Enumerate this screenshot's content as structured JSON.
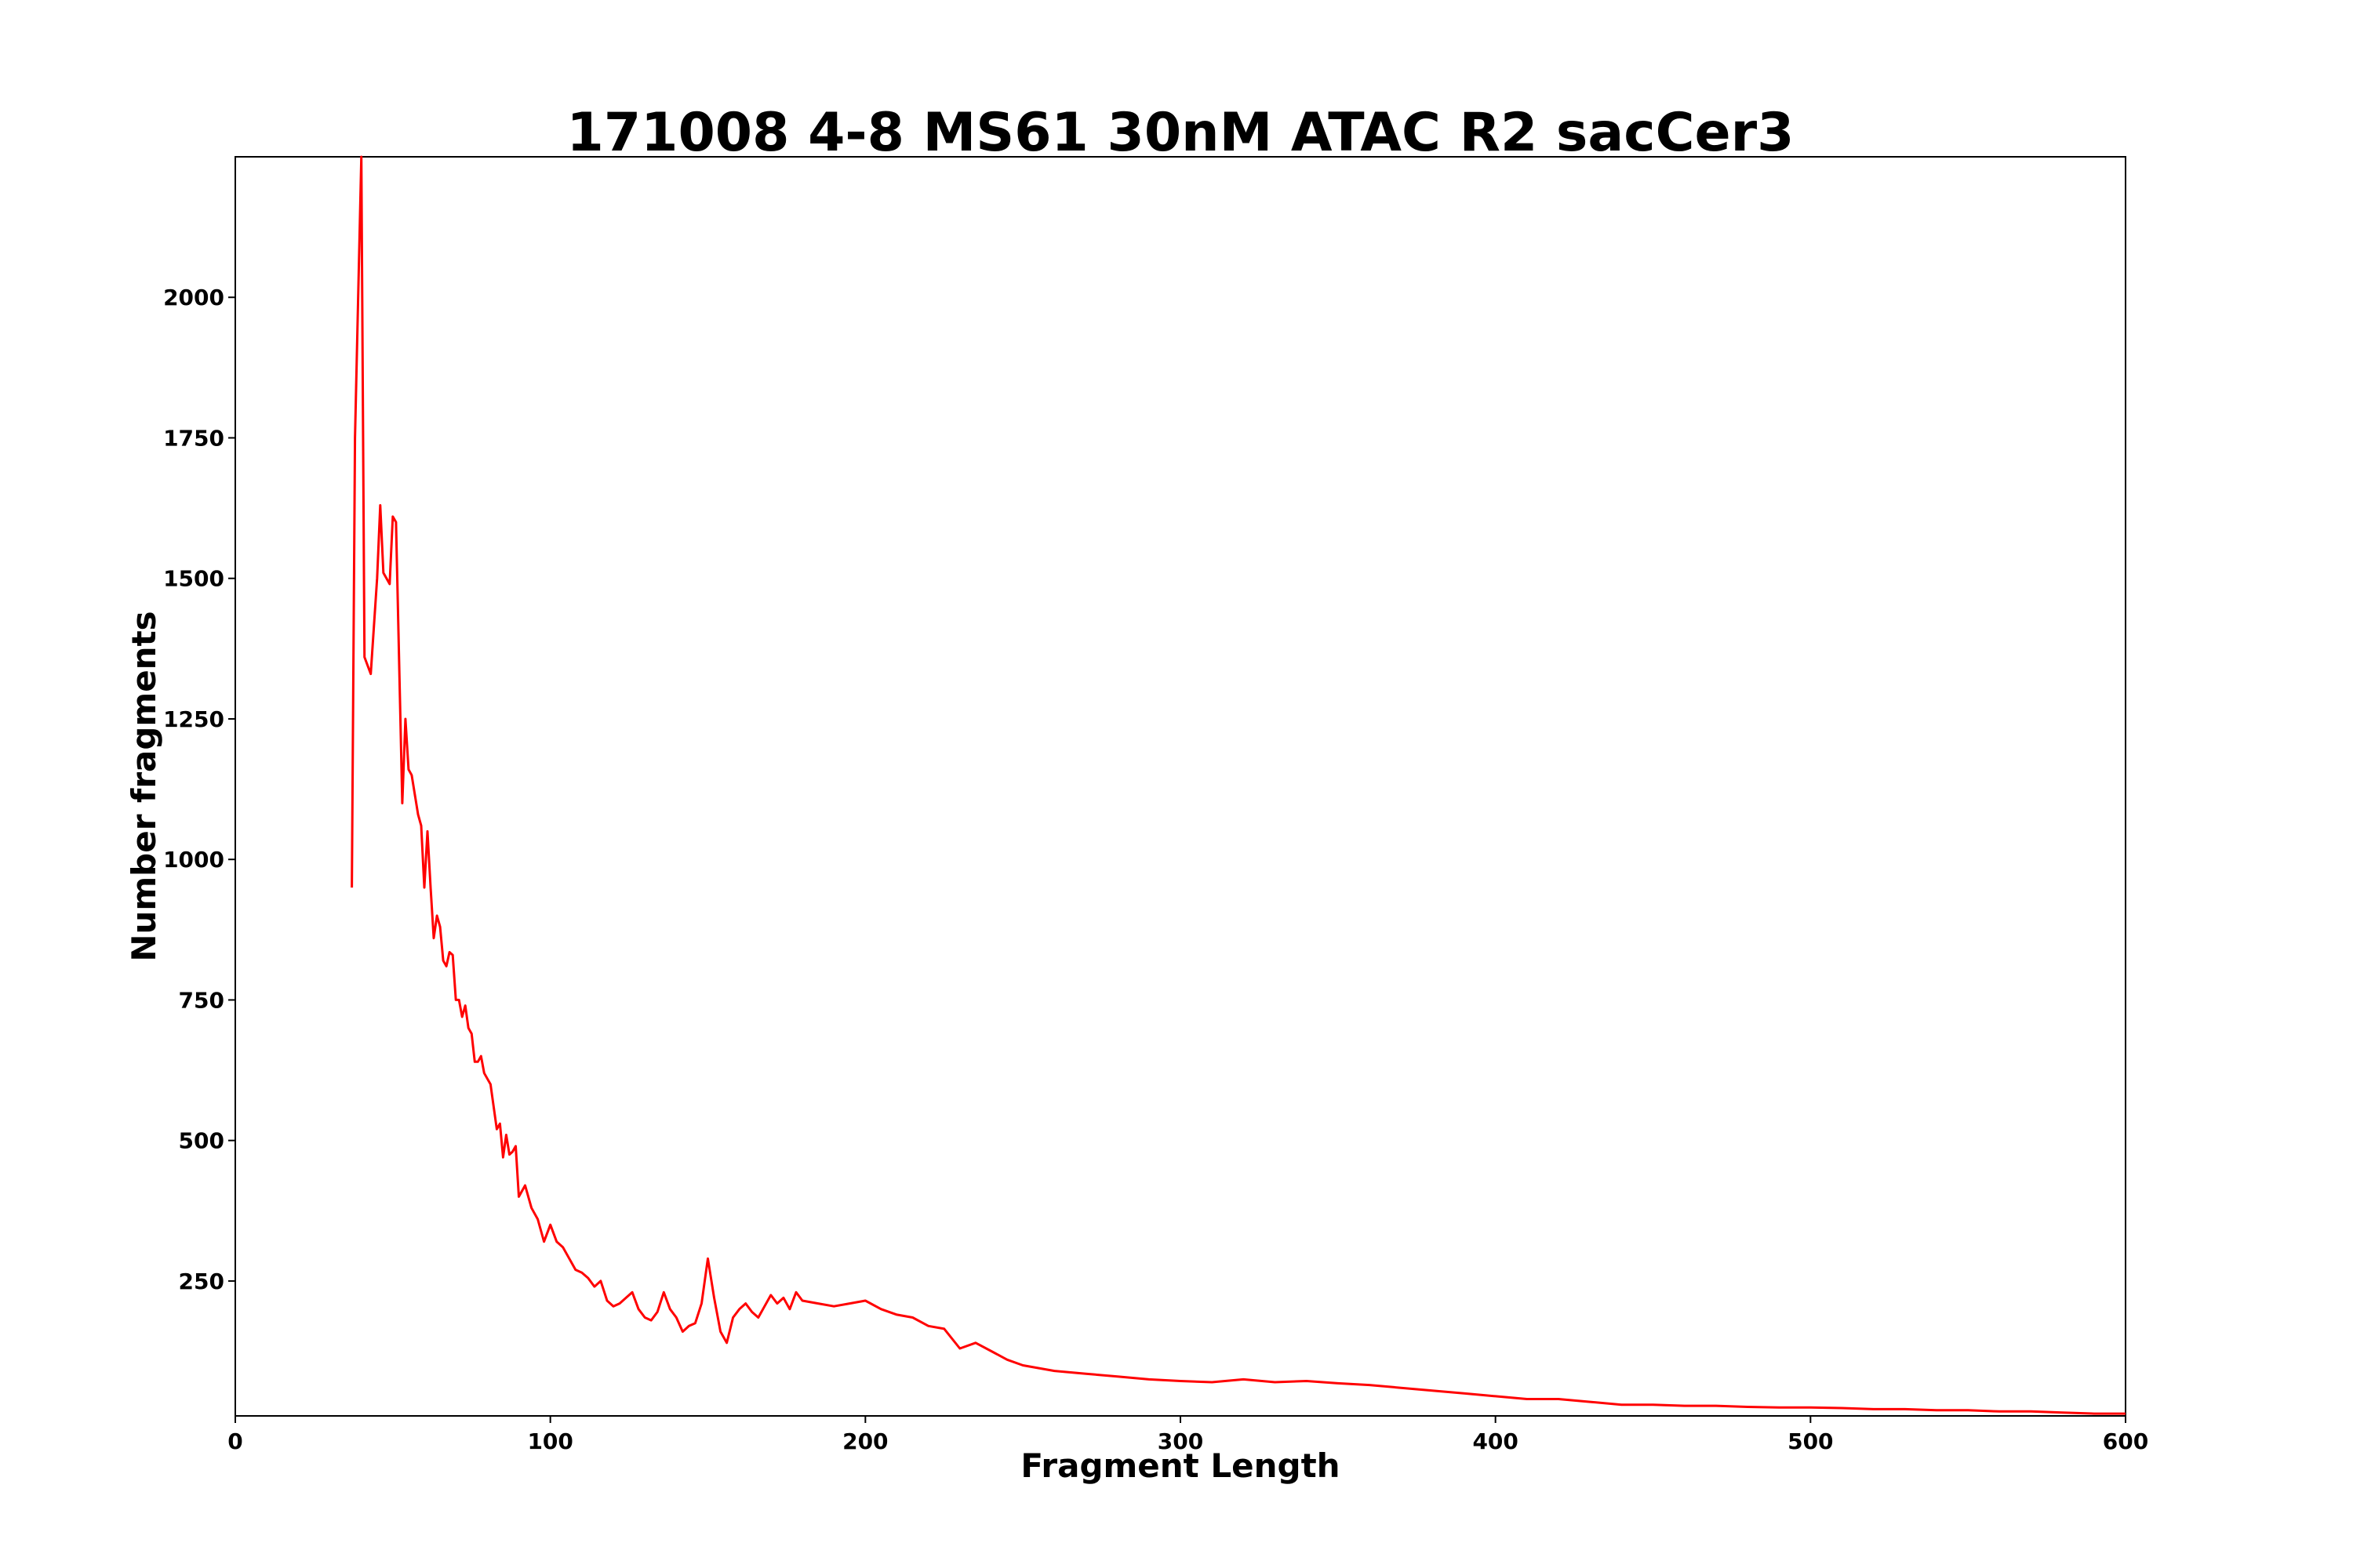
{
  "chart_data": {
    "type": "line",
    "title": "171008 4-8 MS61 30nM ATAC R2 sacCer3",
    "xlabel": "Fragment Length",
    "ylabel": "Number fragments",
    "xlim": [
      0,
      600
    ],
    "ylim": [
      10,
      2250
    ],
    "x_ticks": [
      0,
      100,
      200,
      300,
      400,
      500,
      600
    ],
    "y_ticks": [
      250,
      500,
      750,
      1000,
      1250,
      1500,
      1750,
      2000
    ],
    "grid": false,
    "series": [
      {
        "color": "#ff0000",
        "x": [
          37,
          38,
          40,
          41,
          43,
          45,
          46,
          47,
          49,
          50,
          51,
          53,
          54,
          55,
          56,
          58,
          59,
          60,
          61,
          62,
          63,
          64,
          65,
          66,
          67,
          68,
          69,
          70,
          71,
          72,
          73,
          74,
          75,
          76,
          77,
          78,
          79,
          80,
          81,
          82,
          83,
          84,
          85,
          86,
          87,
          88,
          89,
          90,
          92,
          94,
          96,
          98,
          100,
          102,
          104,
          106,
          108,
          110,
          112,
          114,
          116,
          118,
          120,
          122,
          124,
          126,
          128,
          130,
          132,
          134,
          136,
          138,
          140,
          142,
          144,
          146,
          148,
          150,
          152,
          154,
          156,
          158,
          160,
          162,
          164,
          166,
          168,
          170,
          172,
          174,
          176,
          178,
          180,
          185,
          190,
          195,
          200,
          205,
          210,
          215,
          220,
          225,
          230,
          235,
          240,
          245,
          250,
          260,
          270,
          280,
          290,
          300,
          310,
          320,
          330,
          340,
          350,
          360,
          370,
          380,
          390,
          400,
          410,
          420,
          430,
          440,
          450,
          460,
          470,
          480,
          490,
          500,
          510,
          520,
          530,
          540,
          550,
          560,
          570,
          580,
          590,
          600
        ],
        "values": [
          950,
          1750,
          2250,
          1360,
          1330,
          1500,
          1630,
          1510,
          1490,
          1610,
          1600,
          1100,
          1250,
          1160,
          1150,
          1080,
          1060,
          950,
          1050,
          950,
          860,
          900,
          880,
          820,
          810,
          835,
          830,
          750,
          750,
          720,
          740,
          700,
          690,
          640,
          640,
          650,
          620,
          610,
          600,
          560,
          520,
          530,
          470,
          510,
          475,
          480,
          490,
          400,
          420,
          380,
          360,
          320,
          350,
          320,
          310,
          290,
          270,
          265,
          255,
          240,
          250,
          215,
          205,
          210,
          220,
          230,
          200,
          185,
          180,
          195,
          230,
          200,
          185,
          160,
          170,
          175,
          210,
          290,
          220,
          160,
          140,
          185,
          200,
          210,
          195,
          185,
          205,
          225,
          210,
          220,
          200,
          230,
          215,
          210,
          205,
          210,
          215,
          200,
          190,
          185,
          170,
          165,
          130,
          140,
          125,
          110,
          100,
          90,
          85,
          80,
          75,
          72,
          70,
          75,
          70,
          72,
          68,
          65,
          60,
          55,
          50,
          45,
          40,
          40,
          35,
          30,
          30,
          28,
          28,
          26,
          25,
          25,
          24,
          22,
          22,
          20,
          20,
          18,
          18,
          16,
          14,
          14
        ]
      }
    ]
  }
}
